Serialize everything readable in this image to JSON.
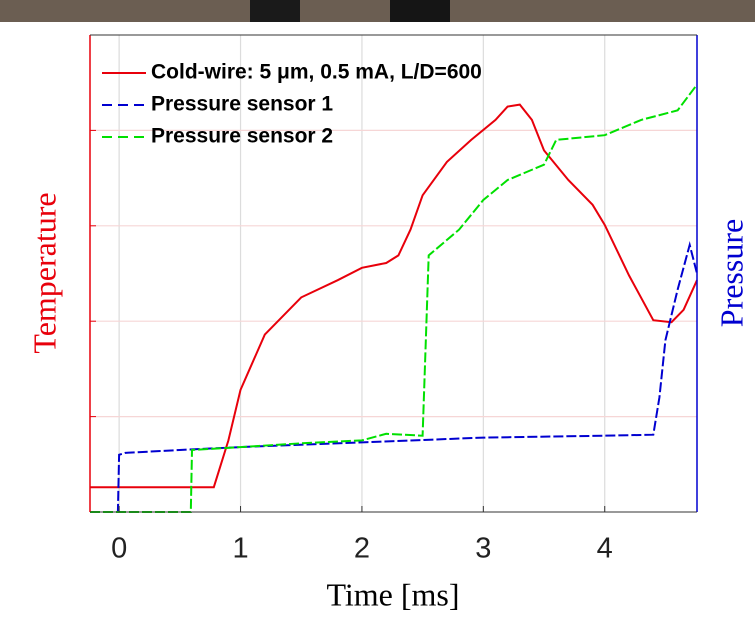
{
  "chart_data": {
    "type": "line",
    "xlabel": "Time [ms]",
    "ylabel": "Temperature",
    "y2label": "Pressure",
    "xlim": [
      -0.24,
      4.76
    ],
    "xticks": [
      0,
      1,
      2,
      3,
      4
    ],
    "ylim": [
      0,
      5
    ],
    "yticks": [
      1,
      2,
      3,
      4
    ],
    "y2lim": [
      0,
      5
    ],
    "grid": true,
    "legend": "upper left",
    "series": [
      {
        "name": "Cold-wire: 5 μm, 0.5 mA, L/D=600",
        "color": "#e8000b",
        "style": "solid",
        "x": [
          -0.24,
          0.78,
          0.9,
          1.0,
          1.2,
          1.5,
          1.8,
          2.0,
          2.2,
          2.3,
          2.4,
          2.5,
          2.7,
          2.9,
          3.1,
          3.2,
          3.3,
          3.4,
          3.5,
          3.7,
          3.9,
          4.0,
          4.2,
          4.4,
          4.55,
          4.65,
          4.76
        ],
        "values": [
          0.26,
          0.26,
          0.75,
          1.28,
          1.86,
          2.25,
          2.43,
          2.56,
          2.61,
          2.69,
          2.96,
          3.32,
          3.67,
          3.9,
          4.11,
          4.25,
          4.27,
          4.11,
          3.79,
          3.48,
          3.22,
          3.01,
          2.48,
          2.01,
          1.99,
          2.12,
          2.43
        ]
      },
      {
        "name": "Pressure sensor 1",
        "color": "#0000d0",
        "style": "dashed",
        "axis": "y2",
        "x": [
          -0.24,
          -0.01,
          0.0,
          0.05,
          0.5,
          1.0,
          2.0,
          3.0,
          4.0,
          4.4,
          4.45,
          4.5,
          4.6,
          4.7,
          4.76
        ],
        "values": [
          0,
          0,
          0.6,
          0.62,
          0.65,
          0.68,
          0.73,
          0.78,
          0.8,
          0.81,
          1.2,
          1.8,
          2.33,
          2.8,
          2.5
        ]
      },
      {
        "name": "Pressure sensor 2",
        "color": "#00e000",
        "style": "dashed",
        "axis": "y2",
        "x": [
          -0.24,
          0.59,
          0.6,
          1.0,
          1.5,
          2.0,
          2.2,
          2.5,
          2.55,
          2.8,
          3.0,
          3.2,
          3.5,
          3.6,
          4.0,
          4.3,
          4.6,
          4.76
        ],
        "values": [
          0,
          0,
          0.65,
          0.68,
          0.72,
          0.75,
          0.82,
          0.8,
          2.69,
          2.96,
          3.27,
          3.48,
          3.64,
          3.9,
          3.95,
          4.11,
          4.21,
          4.48
        ]
      }
    ]
  }
}
